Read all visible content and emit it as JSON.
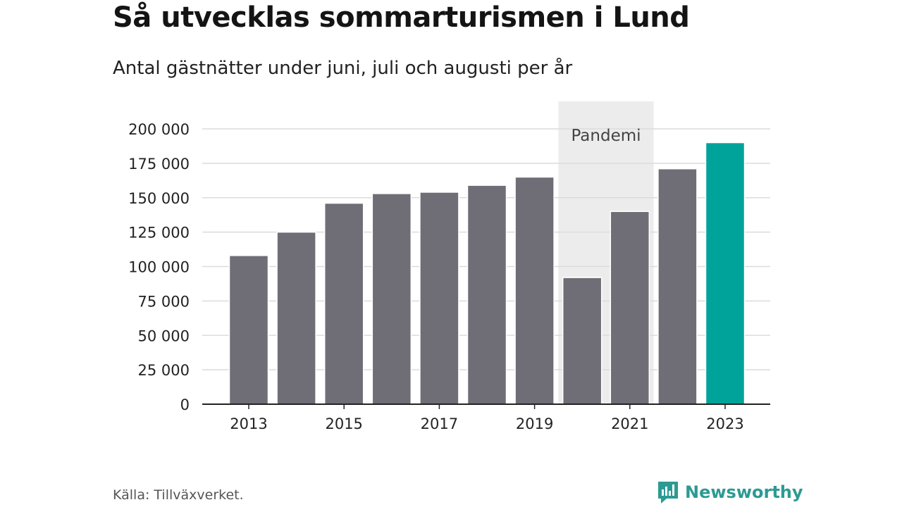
{
  "header": {
    "title": "Så utvecklas sommarturismen i Lund",
    "subtitle": "Antal gästnätter under juni, juli och augusti per år"
  },
  "footer": {
    "source": "Källa: Tillväxverket.",
    "brand": "Newsworthy"
  },
  "colors": {
    "bar": "#6f6e76",
    "highlight": "#00a39a",
    "shade": "#ececec",
    "grid": "#dcdcdc",
    "axis": "#222222",
    "brand": "#2c9a93"
  },
  "chart_data": {
    "type": "bar",
    "title": "Så utvecklas sommarturismen i Lund",
    "subtitle": "Antal gästnätter under juni, juli och augusti per år",
    "categories": [
      "2013",
      "2014",
      "2015",
      "2016",
      "2017",
      "2018",
      "2019",
      "2020",
      "2021",
      "2022",
      "2023"
    ],
    "values": [
      108000,
      125000,
      146000,
      153000,
      154000,
      159000,
      165000,
      92000,
      140000,
      171000,
      190000
    ],
    "x_tick_labels": [
      "2013",
      "2015",
      "2017",
      "2019",
      "2021",
      "2023"
    ],
    "y_ticks": [
      0,
      25000,
      50000,
      75000,
      100000,
      125000,
      150000,
      175000,
      200000
    ],
    "y_tick_labels": [
      "0",
      "25 000",
      "50 000",
      "75 000",
      "100 000",
      "125 000",
      "150 000",
      "175 000",
      "200 000"
    ],
    "ylim": [
      0,
      200000
    ],
    "grid": true,
    "highlighted_category": "2023",
    "annotation": {
      "label": "Pandemi",
      "from": "2020",
      "to": "2021"
    }
  }
}
